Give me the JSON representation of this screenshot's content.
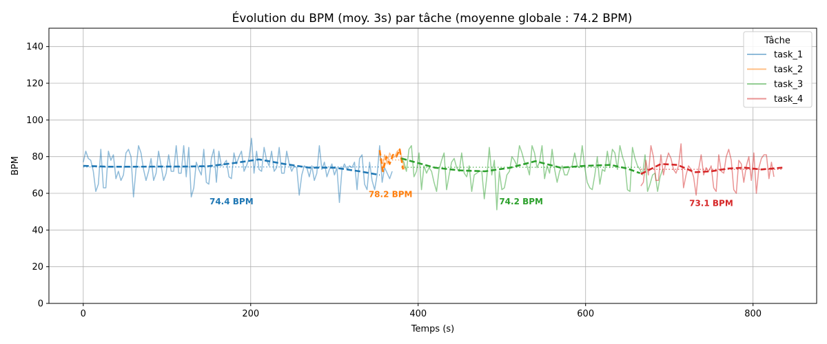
{
  "chart_data": {
    "type": "line",
    "title": "Évolution du BPM (moy. 3s) par tâche (moyenne globale : 74.2 BPM)",
    "xlabel": "Temps (s)",
    "ylabel": "BPM",
    "xlim": [
      -41,
      876
    ],
    "ylim": [
      0,
      150
    ],
    "x_ticks": [
      0,
      200,
      400,
      600,
      800
    ],
    "y_ticks": [
      0,
      20,
      40,
      60,
      80,
      100,
      120,
      140
    ],
    "grid": true,
    "legend": {
      "title": "Tâche",
      "placement": "top-right"
    },
    "series": [
      {
        "name": "task_1",
        "color": "#1f77b4",
        "x_start": 0,
        "x_step": 3,
        "values": [
          77,
          83,
          79,
          78,
          72,
          61,
          65,
          84,
          63,
          63,
          83,
          78,
          81,
          68,
          72,
          67,
          70,
          82,
          84,
          80,
          58,
          73,
          86,
          82,
          73,
          67,
          72,
          79,
          67,
          71,
          83,
          75,
          67,
          71,
          81,
          72,
          72,
          86,
          71,
          71,
          86,
          69,
          85,
          58,
          63,
          77,
          73,
          70,
          84,
          66,
          65,
          79,
          84,
          66,
          83,
          75,
          76,
          78,
          69,
          68,
          82,
          76,
          80,
          83,
          72,
          75,
          79,
          90,
          71,
          83,
          73,
          72,
          85,
          78,
          75,
          83,
          72,
          74,
          85,
          71,
          71,
          83,
          76,
          72,
          75,
          74,
          59,
          70,
          75,
          74,
          69,
          75,
          67,
          71,
          86,
          73,
          77,
          69,
          73,
          76,
          70,
          74,
          55,
          73,
          76,
          73,
          75,
          74,
          77,
          62,
          79,
          81,
          65,
          62,
          77,
          67,
          62,
          70,
          86,
          66,
          74,
          71,
          68,
          72
        ]
      },
      {
        "name": "task_2",
        "color": "#ff7f0e",
        "x_start": 354,
        "x_step": 3,
        "values": [
          83,
          72,
          81,
          76,
          82,
          79,
          80,
          83,
          84,
          78,
          73
        ]
      },
      {
        "name": "task_3",
        "color": "#2ca02c",
        "x_start": 380,
        "x_step": 3,
        "values": [
          79,
          77,
          72,
          84,
          86,
          69,
          72,
          82,
          62,
          75,
          71,
          74,
          72,
          66,
          61,
          73,
          78,
          82,
          62,
          70,
          77,
          79,
          74,
          72,
          82,
          71,
          69,
          75,
          61,
          70,
          71,
          72,
          72,
          57,
          69,
          85,
          70,
          78,
          51,
          72,
          62,
          63,
          70,
          72,
          80,
          78,
          75,
          86,
          82,
          77,
          75,
          70,
          86,
          82,
          74,
          77,
          86,
          68,
          75,
          71,
          84,
          73,
          66,
          72,
          75,
          70,
          70,
          74,
          75,
          82,
          75,
          74,
          86,
          74,
          66,
          63,
          62,
          70,
          80,
          65,
          73,
          72,
          83,
          74,
          84,
          82,
          73,
          86,
          80,
          76,
          62,
          61,
          85,
          79,
          75,
          73,
          70,
          81,
          61,
          65,
          70,
          71,
          61,
          69,
          73
        ]
      },
      {
        "name": "task_4",
        "color": "#d62728",
        "x_start": 666,
        "x_step": 3,
        "values": [
          64,
          66,
          78,
          70,
          86,
          80,
          67,
          67,
          81,
          70,
          77,
          82,
          79,
          73,
          71,
          75,
          87,
          63,
          70,
          75,
          73,
          69,
          59,
          73,
          81,
          70,
          74,
          72,
          75,
          63,
          61,
          81,
          72,
          71,
          80,
          84,
          78,
          62,
          60,
          78,
          76,
          66,
          75,
          80,
          67,
          82,
          60,
          74,
          79,
          81,
          81,
          68,
          77,
          69
        ]
      }
    ],
    "trends": [
      {
        "name": "task_1",
        "color": "#1f77b4",
        "x": [
          0,
          30,
          60,
          90,
          120,
          150,
          180,
          210,
          240,
          270,
          300,
          330,
          354
        ],
        "values": [
          75,
          74.5,
          74.5,
          74.6,
          74.6,
          74.8,
          76.5,
          78.5,
          76,
          74,
          74,
          72,
          70
        ]
      },
      {
        "name": "task_2",
        "color": "#ff7f0e",
        "x": [
          354,
          358,
          362,
          366,
          370,
          374,
          378,
          382
        ],
        "values": [
          83.5,
          72,
          80,
          76,
          81,
          80,
          84,
          73
        ]
      },
      {
        "name": "task_3",
        "color": "#2ca02c",
        "x": [
          380,
          420,
          450,
          480,
          510,
          540,
          570,
          600,
          630,
          650,
          665
        ],
        "values": [
          79,
          74,
          72.5,
          72,
          74,
          77.5,
          74,
          75,
          75.5,
          73.5,
          71
        ]
      },
      {
        "name": "task_4",
        "color": "#d62728",
        "x": [
          666,
          690,
          710,
          730,
          750,
          770,
          790,
          810,
          835
        ],
        "values": [
          70.5,
          76,
          75.5,
          71.5,
          72,
          73.5,
          74,
          73,
          74
        ]
      }
    ],
    "means": [
      {
        "name": "task_1",
        "color": "#1f77b4",
        "value": 74.4,
        "x_range": [
          0,
          354
        ],
        "label": "74.4 BPM",
        "label_x": 177,
        "label_y": 54
      },
      {
        "name": "task_2",
        "color": "#ff7f0e",
        "value": 78.2,
        "x_range": [
          354,
          382
        ],
        "label": "78.2 BPM",
        "label_x": 367,
        "label_y": 58
      },
      {
        "name": "task_3",
        "color": "#2ca02c",
        "value": 74.2,
        "x_range": [
          380,
          666
        ],
        "label": "74.2 BPM",
        "label_x": 523,
        "label_y": 54
      },
      {
        "name": "task_4",
        "color": "#d62728",
        "value": 73.1,
        "x_range": [
          666,
          835
        ],
        "label": "73.1 BPM",
        "label_x": 750,
        "label_y": 53
      }
    ]
  }
}
